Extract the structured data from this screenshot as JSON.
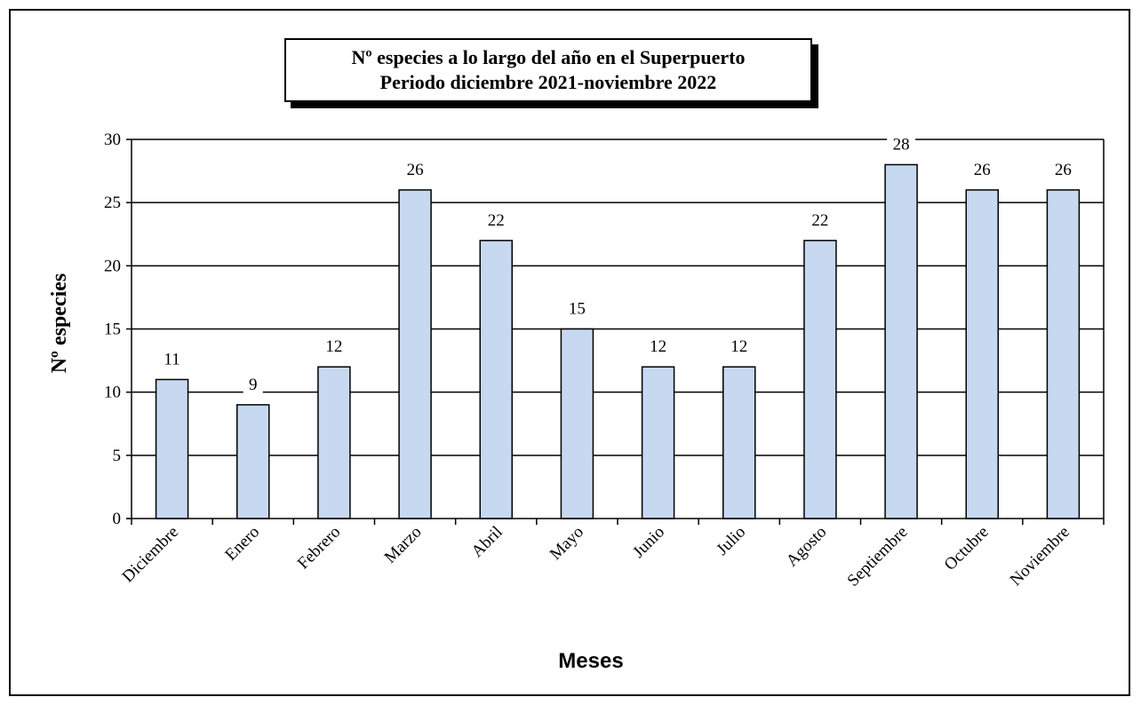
{
  "chart_data": {
    "type": "bar",
    "title_line1": "Nº especies a lo largo del año en el Superpuerto",
    "title_line2": "Periodo diciembre 2021-noviembre 2022",
    "xlabel": "Meses",
    "ylabel": "Nº especies",
    "categories": [
      "Diciembre",
      "Enero",
      "Febrero",
      "Marzo",
      "Abril",
      "Mayo",
      "Junio",
      "Julio",
      "Agosto",
      "Septiembre",
      "Octubre",
      "Noviembre"
    ],
    "values": [
      11,
      9,
      12,
      26,
      22,
      15,
      12,
      12,
      22,
      28,
      26,
      26
    ],
    "ylim": [
      0,
      30
    ],
    "yticks": [
      "0",
      "5",
      "10",
      "15",
      "20",
      "25",
      "30"
    ],
    "grid": true,
    "data_labels": true,
    "bar_color": "#c6d9f0",
    "bar_edge_color": "#000000"
  }
}
